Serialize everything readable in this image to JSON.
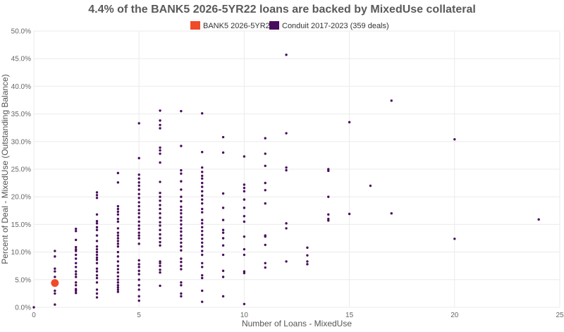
{
  "chart_data": {
    "type": "scatter",
    "title": "4.4% of the BANK5 2026-5YR22 loans are backed by MixedUse collateral",
    "xlabel": "Number of Loans - MixedUse",
    "ylabel": "Percent of Deal - MixedUse (Outstanding Balance)",
    "xlim": [
      0,
      25
    ],
    "ylim": [
      0,
      50
    ],
    "x_ticks": [
      "0",
      "5",
      "10",
      "15",
      "20",
      "25"
    ],
    "y_ticks": [
      "0.0%",
      "5.0%",
      "10.0%",
      "15.0%",
      "20.0%",
      "25.0%",
      "30.0%",
      "35.0%",
      "40.0%",
      "45.0%",
      "50.0%"
    ],
    "grid": true,
    "legend_position": "top-center",
    "series": [
      {
        "name": "BANK5 2026-5YR22",
        "color": "#f04a2b",
        "points": [
          [
            1,
            4.4
          ]
        ]
      },
      {
        "name": "Conduit 2017-2023 (359 deals)",
        "color": "#4a0d5c",
        "points": [
          [
            0,
            0
          ],
          [
            1,
            0.5
          ],
          [
            1,
            2.5
          ],
          [
            1,
            3.0
          ],
          [
            1,
            5.5
          ],
          [
            1,
            6.5
          ],
          [
            1,
            7.0
          ],
          [
            1,
            9.2
          ],
          [
            1,
            10.2
          ],
          [
            2,
            2.6
          ],
          [
            2,
            3.0
          ],
          [
            2,
            3.3
          ],
          [
            2,
            4.0
          ],
          [
            2,
            4.5
          ],
          [
            2,
            5.5
          ],
          [
            2,
            6.0
          ],
          [
            2,
            6.5
          ],
          [
            2,
            7.3
          ],
          [
            2,
            8.0
          ],
          [
            2,
            8.8
          ],
          [
            2,
            9.5
          ],
          [
            2,
            10.2
          ],
          [
            2,
            10.5
          ],
          [
            2,
            10.9
          ],
          [
            2,
            12.2
          ],
          [
            2,
            13.8
          ],
          [
            2,
            14.2
          ],
          [
            3,
            1.8
          ],
          [
            3,
            2.5
          ],
          [
            3,
            3.2
          ],
          [
            3,
            4.5
          ],
          [
            3,
            5.3
          ],
          [
            3,
            5.8
          ],
          [
            3,
            6.5
          ],
          [
            3,
            7.0
          ],
          [
            3,
            8.0
          ],
          [
            3,
            8.6
          ],
          [
            3,
            9.0
          ],
          [
            3,
            9.5
          ],
          [
            3,
            10.0
          ],
          [
            3,
            10.5
          ],
          [
            3,
            11.0
          ],
          [
            3,
            12.0
          ],
          [
            3,
            13.0
          ],
          [
            3,
            14.0
          ],
          [
            3,
            14.5
          ],
          [
            3,
            15.2
          ],
          [
            3,
            15.6
          ],
          [
            3,
            16.8
          ],
          [
            3,
            19.8
          ],
          [
            3,
            20.3
          ],
          [
            3,
            20.8
          ],
          [
            4,
            2.8
          ],
          [
            4,
            3.2
          ],
          [
            4,
            3.6
          ],
          [
            4,
            4.0
          ],
          [
            4,
            4.5
          ],
          [
            4,
            5.0
          ],
          [
            4,
            5.6
          ],
          [
            4,
            6.3
          ],
          [
            4,
            6.9
          ],
          [
            4,
            7.5
          ],
          [
            4,
            8.3
          ],
          [
            4,
            9.2
          ],
          [
            4,
            10.0
          ],
          [
            4,
            11.0
          ],
          [
            4,
            11.5
          ],
          [
            4,
            12.0
          ],
          [
            4,
            12.5
          ],
          [
            4,
            13.0
          ],
          [
            4,
            13.5
          ],
          [
            4,
            14.3
          ],
          [
            4,
            15.5
          ],
          [
            4,
            16.0
          ],
          [
            4,
            16.8
          ],
          [
            4,
            17.3
          ],
          [
            4,
            17.8
          ],
          [
            4,
            18.3
          ],
          [
            4,
            22.6
          ],
          [
            4,
            24.3
          ],
          [
            5,
            1.2
          ],
          [
            5,
            2.0
          ],
          [
            5,
            3.2
          ],
          [
            5,
            4.0
          ],
          [
            5,
            5.0
          ],
          [
            5,
            6.0
          ],
          [
            5,
            6.6
          ],
          [
            5,
            7.3
          ],
          [
            5,
            7.8
          ],
          [
            5,
            8.5
          ],
          [
            5,
            11.5
          ],
          [
            5,
            12.5
          ],
          [
            5,
            13.0
          ],
          [
            5,
            13.5
          ],
          [
            5,
            14.2
          ],
          [
            5,
            14.8
          ],
          [
            5,
            15.5
          ],
          [
            5,
            16.3
          ],
          [
            5,
            17.0
          ],
          [
            5,
            17.6
          ],
          [
            5,
            18.3
          ],
          [
            5,
            19.0
          ],
          [
            5,
            19.8
          ],
          [
            5,
            20.5
          ],
          [
            5,
            21.3
          ],
          [
            5,
            22.0
          ],
          [
            5,
            22.6
          ],
          [
            5,
            23.3
          ],
          [
            5,
            24.0
          ],
          [
            5,
            27.0
          ],
          [
            5,
            33.3
          ],
          [
            6,
            3.9
          ],
          [
            6,
            6.3
          ],
          [
            6,
            6.8
          ],
          [
            6,
            7.5
          ],
          [
            6,
            8.0
          ],
          [
            6,
            8.3
          ],
          [
            6,
            11.2
          ],
          [
            6,
            11.8
          ],
          [
            6,
            12.5
          ],
          [
            6,
            13.2
          ],
          [
            6,
            14.0
          ],
          [
            6,
            14.8
          ],
          [
            6,
            15.4
          ],
          [
            6,
            16.2
          ],
          [
            6,
            17.0
          ],
          [
            6,
            17.8
          ],
          [
            6,
            18.5
          ],
          [
            6,
            19.3
          ],
          [
            6,
            20.0
          ],
          [
            6,
            20.7
          ],
          [
            6,
            22.7
          ],
          [
            6,
            26.2
          ],
          [
            6,
            27.8
          ],
          [
            6,
            28.4
          ],
          [
            6,
            28.9
          ],
          [
            6,
            32.4
          ],
          [
            6,
            33.0
          ],
          [
            6,
            33.8
          ],
          [
            6,
            35.6
          ],
          [
            7,
            2.0
          ],
          [
            7,
            2.5
          ],
          [
            7,
            4.0
          ],
          [
            7,
            4.5
          ],
          [
            7,
            6.9
          ],
          [
            7,
            7.5
          ],
          [
            7,
            8.2
          ],
          [
            7,
            8.8
          ],
          [
            7,
            10.3
          ],
          [
            7,
            11.0
          ],
          [
            7,
            11.7
          ],
          [
            7,
            12.4
          ],
          [
            7,
            13.0
          ],
          [
            7,
            13.7
          ],
          [
            7,
            14.3
          ],
          [
            7,
            15.0
          ],
          [
            7,
            15.7
          ],
          [
            7,
            16.3
          ],
          [
            7,
            17.0
          ],
          [
            7,
            17.6
          ],
          [
            7,
            18.2
          ],
          [
            7,
            19.2
          ],
          [
            7,
            20.0
          ],
          [
            7,
            21.3
          ],
          [
            7,
            22.8
          ],
          [
            7,
            24.2
          ],
          [
            7,
            24.8
          ],
          [
            7,
            29.2
          ],
          [
            7,
            35.5
          ],
          [
            8,
            1.0
          ],
          [
            8,
            3.0
          ],
          [
            8,
            5.3
          ],
          [
            8,
            5.8
          ],
          [
            8,
            7.3
          ],
          [
            8,
            8.0
          ],
          [
            8,
            9.5
          ],
          [
            8,
            10.2
          ],
          [
            8,
            11.0
          ],
          [
            8,
            11.7
          ],
          [
            8,
            12.4
          ],
          [
            8,
            13.1
          ],
          [
            8,
            13.8
          ],
          [
            8,
            14.5
          ],
          [
            8,
            15.2
          ],
          [
            8,
            15.8
          ],
          [
            8,
            17.2
          ],
          [
            8,
            17.8
          ],
          [
            8,
            18.8
          ],
          [
            8,
            19.5
          ],
          [
            8,
            20.2
          ],
          [
            8,
            21.0
          ],
          [
            8,
            21.8
          ],
          [
            8,
            22.5
          ],
          [
            8,
            23.3
          ],
          [
            8,
            23.8
          ],
          [
            8,
            24.5
          ],
          [
            8,
            25.3
          ],
          [
            8,
            28.1
          ],
          [
            8,
            35.1
          ],
          [
            9,
            2.0
          ],
          [
            9,
            5.5
          ],
          [
            9,
            6.6
          ],
          [
            9,
            9.5
          ],
          [
            9,
            11.2
          ],
          [
            9,
            12.5
          ],
          [
            9,
            13.5
          ],
          [
            9,
            14.0
          ],
          [
            9,
            15.8
          ],
          [
            9,
            18.0
          ],
          [
            9,
            20.6
          ],
          [
            9,
            28.0
          ],
          [
            9,
            30.8
          ],
          [
            10,
            0.6
          ],
          [
            10,
            6.2
          ],
          [
            10,
            6.5
          ],
          [
            10,
            9.5
          ],
          [
            10,
            10.5
          ],
          [
            10,
            12.8
          ],
          [
            10,
            15.5
          ],
          [
            10,
            16.5
          ],
          [
            10,
            18.0
          ],
          [
            10,
            19.5
          ],
          [
            10,
            21.0
          ],
          [
            10,
            21.6
          ],
          [
            10,
            22.2
          ],
          [
            10,
            27.3
          ],
          [
            11,
            7.2
          ],
          [
            11,
            8.0
          ],
          [
            11,
            11.3
          ],
          [
            11,
            12.8
          ],
          [
            11,
            13.0
          ],
          [
            11,
            18.8
          ],
          [
            11,
            21.2
          ],
          [
            11,
            22.5
          ],
          [
            11,
            25.6
          ],
          [
            11,
            27.8
          ],
          [
            11,
            30.6
          ],
          [
            12,
            8.3
          ],
          [
            12,
            14.3
          ],
          [
            12,
            15.2
          ],
          [
            12,
            24.8
          ],
          [
            12,
            25.3
          ],
          [
            12,
            31.5
          ],
          [
            12,
            45.7
          ],
          [
            13,
            7.8
          ],
          [
            13,
            8.3
          ],
          [
            13,
            9.4
          ],
          [
            13,
            10.8
          ],
          [
            14,
            15.7
          ],
          [
            14,
            16.0
          ],
          [
            14,
            16.8
          ],
          [
            14,
            20.0
          ],
          [
            14,
            24.7
          ],
          [
            14,
            25.0
          ],
          [
            15,
            16.9
          ],
          [
            15,
            33.5
          ],
          [
            16,
            22.0
          ],
          [
            17,
            17.0
          ],
          [
            17,
            37.4
          ],
          [
            20,
            12.4
          ],
          [
            20,
            30.4
          ],
          [
            24,
            15.9
          ]
        ]
      }
    ]
  }
}
